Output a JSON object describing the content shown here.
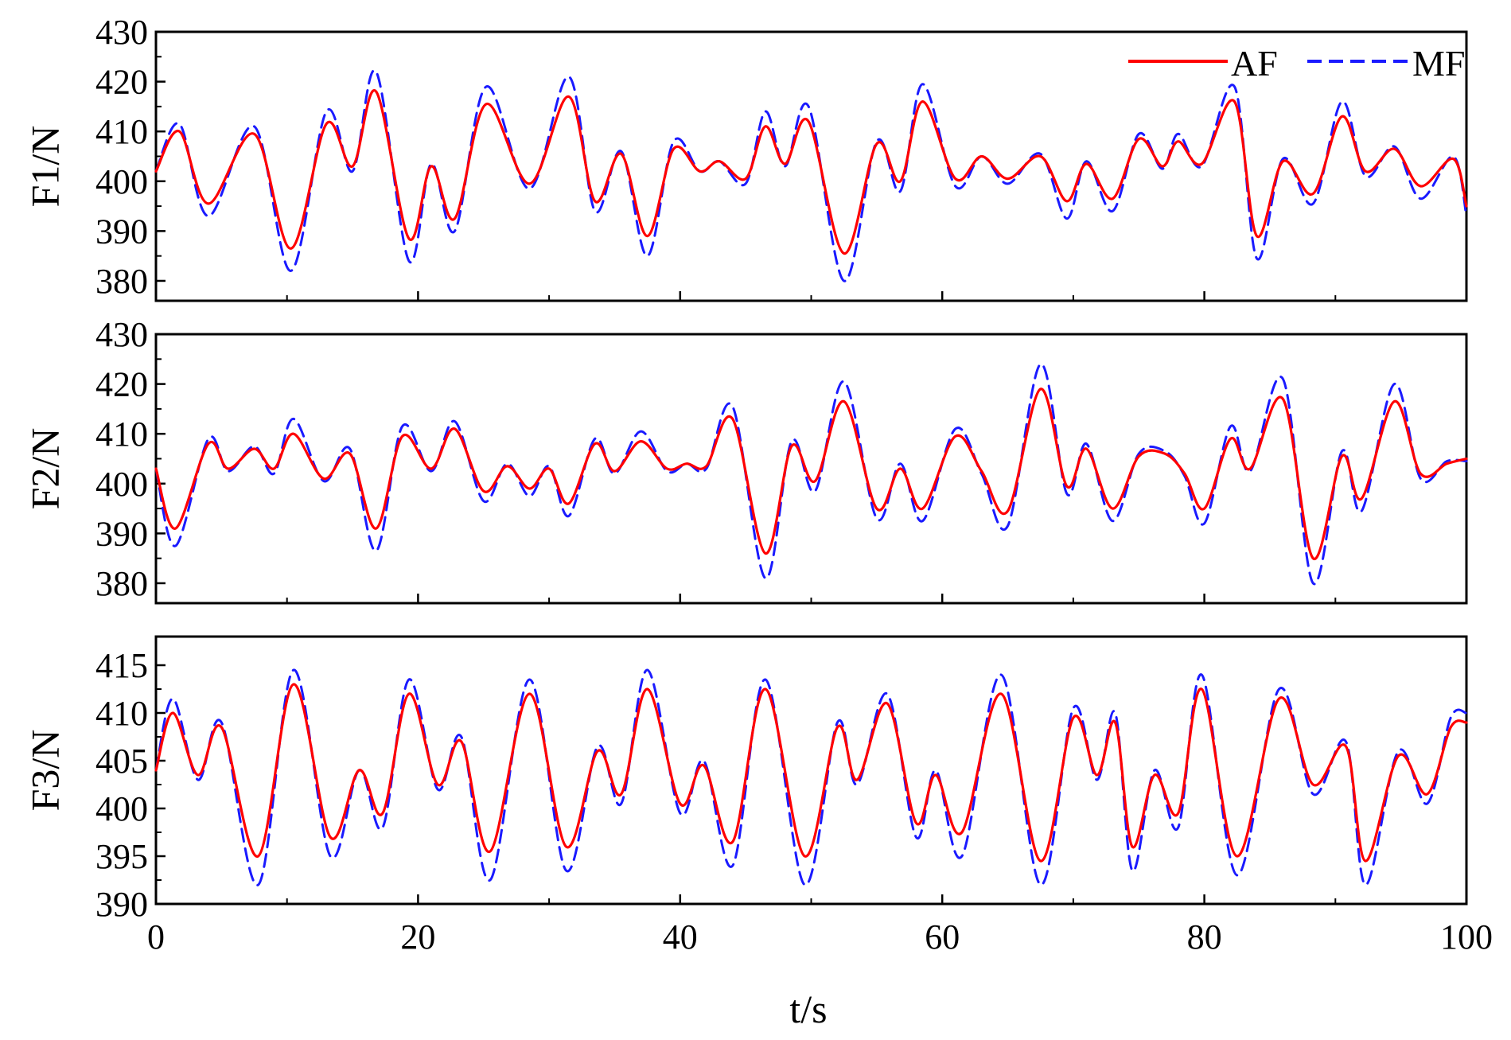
{
  "figure": {
    "xlabel": "t/s",
    "legend_position": "top-right of first panel",
    "colors": {
      "AF": "#ff0000",
      "MF": "#1a1aff",
      "frame": "#000000",
      "background": "#ffffff"
    }
  },
  "legend": [
    {
      "label": "AF",
      "style": "solid",
      "color": "#ff0000"
    },
    {
      "label": "MF",
      "style": "dashed",
      "color": "#1a1aff"
    }
  ],
  "chart_data": [
    {
      "type": "line",
      "ylabel": "F1/N",
      "xlim": [
        0,
        100
      ],
      "ylim": [
        376,
        430
      ],
      "x_ticks": [
        0,
        20,
        40,
        60,
        80,
        100
      ],
      "y_ticks": [
        380,
        390,
        400,
        410,
        420,
        430
      ],
      "grid": false,
      "x": [
        0,
        1.8,
        4,
        7.5,
        10.3,
        13,
        15,
        16.8,
        19.3,
        21,
        22.8,
        25.2,
        28.5,
        31.5,
        33.5,
        35.5,
        37.5,
        39.5,
        41.5,
        43,
        45,
        46.5,
        48,
        49.8,
        52.5,
        55,
        56.8,
        58.5,
        61,
        63,
        65,
        67.5,
        69.5,
        71,
        73,
        75,
        76.8,
        78,
        79.8,
        82.3,
        84,
        86,
        88.3,
        90.5,
        92.3,
        94.5,
        96.5,
        99,
        100
      ],
      "series": [
        {
          "name": "AF",
          "values": [
            402,
            410,
            395.5,
            409.5,
            386.5,
            411.5,
            403,
            418,
            388.5,
            403,
            392.5,
            415.5,
            399.5,
            417,
            396,
            405.5,
            389,
            406.5,
            402,
            404,
            400.5,
            411,
            403.5,
            412,
            385.5,
            407.5,
            400,
            416,
            400.5,
            405,
            400.5,
            405,
            396,
            403.5,
            396.5,
            408.5,
            403,
            408,
            403.5,
            416,
            389,
            404,
            397.5,
            413,
            402,
            406.5,
            399,
            404.5,
            395
          ]
        },
        {
          "name": "MF",
          "values": [
            402,
            411.5,
            393,
            411,
            382,
            414,
            402,
            422,
            384,
            403.5,
            390,
            419,
            398.5,
            421,
            394,
            406,
            385,
            408,
            402,
            404,
            399.5,
            414,
            403,
            415,
            380,
            408,
            398,
            419.5,
            399,
            405,
            399.5,
            405.5,
            392.5,
            404,
            394,
            409.5,
            402.5,
            409.5,
            403,
            419,
            384.5,
            404.5,
            395.5,
            416,
            401,
            407,
            396.5,
            405,
            393
          ]
        }
      ]
    },
    {
      "type": "line",
      "ylabel": "F2/N",
      "xlim": [
        0,
        100
      ],
      "ylim": [
        376,
        430
      ],
      "x_ticks": [
        0,
        20,
        40,
        60,
        80,
        100
      ],
      "y_ticks": [
        380,
        390,
        400,
        410,
        420,
        430
      ],
      "grid": false,
      "x": [
        0,
        1.5,
        4,
        5.5,
        7.5,
        9,
        10.5,
        12.8,
        14.8,
        16.8,
        18.8,
        21,
        22.8,
        25,
        26.8,
        28.5,
        30,
        31.5,
        33.5,
        35,
        37,
        39,
        40.5,
        42,
        44,
        46.5,
        48.5,
        50.3,
        52.5,
        55,
        56.8,
        58.5,
        61,
        63,
        65,
        67.5,
        69.5,
        71,
        73,
        75,
        77,
        78.5,
        80,
        82,
        83.5,
        86,
        88.3,
        90.5,
        92,
        94.5,
        96.5,
        98.5,
        100
      ],
      "series": [
        {
          "name": "AF",
          "values": [
            403,
            391,
            408,
            403,
            407,
            403,
            410,
            401,
            406,
            391,
            409.5,
            403,
            411,
            398.5,
            403.5,
            399,
            403,
            396,
            408,
            402.5,
            408.5,
            403,
            404,
            403.5,
            413,
            386,
            407.5,
            400.5,
            416.5,
            395,
            403,
            395,
            409.5,
            402.5,
            394.5,
            419,
            399.5,
            407,
            395,
            405.5,
            406,
            402,
            395,
            409,
            403,
            417,
            385,
            405.5,
            397,
            416.5,
            402,
            404,
            405
          ]
        },
        {
          "name": "MF",
          "values": [
            403,
            387.5,
            409,
            402.5,
            407.5,
            402,
            413,
            400.5,
            407,
            386.5,
            411.5,
            402.5,
            412.5,
            396.5,
            404,
            397.5,
            403.5,
            393.5,
            409,
            402,
            410.5,
            402.5,
            404,
            403,
            415.5,
            381,
            408.5,
            398.5,
            420.5,
            393,
            404,
            392.5,
            411,
            402,
            391.5,
            424,
            398,
            408,
            392.5,
            406,
            406.5,
            401.5,
            392,
            411.5,
            402.5,
            421,
            380,
            406.5,
            394.5,
            420,
            401,
            404.5,
            404.5
          ]
        }
      ]
    },
    {
      "type": "line",
      "ylabel": "F3/N",
      "xlim": [
        0,
        100
      ],
      "ylim": [
        390,
        418
      ],
      "x_ticks": [
        0,
        20,
        40,
        60,
        80,
        100
      ],
      "y_ticks": [
        390,
        395,
        400,
        405,
        410,
        415
      ],
      "grid": false,
      "x": [
        0,
        1.3,
        3.2,
        5,
        7.8,
        10.5,
        13.3,
        15.5,
        17.3,
        19.3,
        21.5,
        23.3,
        25.5,
        28.5,
        31.3,
        33.7,
        35.5,
        37.5,
        40,
        41.8,
        44,
        46.5,
        49.5,
        52,
        53.5,
        55.8,
        58,
        59.5,
        61.5,
        64.5,
        67.5,
        70,
        71.8,
        73.2,
        74.5,
        76.2,
        78,
        79.8,
        82.5,
        85.7,
        88.3,
        90.8,
        92.3,
        94.8,
        97,
        98.8,
        100
      ],
      "series": [
        {
          "name": "AF",
          "values": [
            404,
            410,
            403.5,
            408.5,
            395,
            413,
            397,
            404,
            399.5,
            412,
            402.5,
            407,
            395.5,
            412,
            396,
            406,
            401.5,
            412.5,
            400.5,
            404.5,
            396.5,
            412.5,
            395,
            408.5,
            403,
            411,
            398.5,
            403.5,
            397.5,
            412,
            394.5,
            409.5,
            403.5,
            409,
            396,
            403.5,
            399.5,
            412.5,
            395,
            411.5,
            402.5,
            406.5,
            394.5,
            405.5,
            401.5,
            408.5,
            409
          ]
        },
        {
          "name": "MF",
          "values": [
            404,
            411.5,
            403,
            409,
            392,
            414.5,
            395,
            404,
            398,
            413.5,
            402,
            407.5,
            392.5,
            413.5,
            393.5,
            406.5,
            400.5,
            414.5,
            399.5,
            405,
            394,
            413.5,
            392,
            409,
            402.5,
            412,
            397,
            404,
            395,
            414,
            392,
            410.5,
            403,
            410,
            393.5,
            404,
            398,
            414,
            393,
            412.5,
            401.5,
            407,
            392,
            406,
            400.5,
            409.5,
            410
          ]
        }
      ]
    }
  ]
}
